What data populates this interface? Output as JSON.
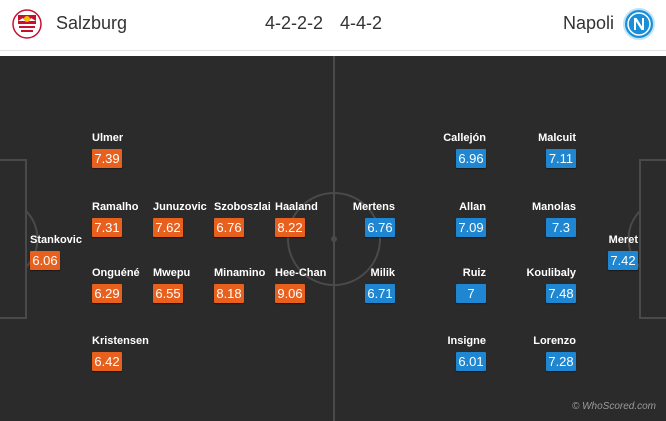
{
  "header": {
    "home_team": "Salzburg",
    "away_team": "Napoli",
    "home_formation": "4-2-2-2",
    "away_formation": "4-4-2"
  },
  "colors": {
    "home_rating": "#e8601e",
    "away_rating": "#1f86d1",
    "pitch": "#2b2b2b"
  },
  "home_players": [
    {
      "name": "Stankovic",
      "rating": "6.06"
    },
    {
      "name": "Ulmer",
      "rating": "7.39"
    },
    {
      "name": "Ramalho",
      "rating": "7.31"
    },
    {
      "name": "Onguéné",
      "rating": "6.29"
    },
    {
      "name": "Kristensen",
      "rating": "6.42"
    },
    {
      "name": "Junuzovic",
      "rating": "7.62"
    },
    {
      "name": "Mwepu",
      "rating": "6.55"
    },
    {
      "name": "Szoboszlai",
      "rating": "6.76"
    },
    {
      "name": "Minamino",
      "rating": "8.18"
    },
    {
      "name": "Haaland",
      "rating": "8.22"
    },
    {
      "name": "Hee-Chan",
      "rating": "9.06"
    }
  ],
  "away_players": [
    {
      "name": "Meret",
      "rating": "7.42"
    },
    {
      "name": "Malcuit",
      "rating": "7.11"
    },
    {
      "name": "Manolas",
      "rating": "7.3"
    },
    {
      "name": "Koulibaly",
      "rating": "7.48"
    },
    {
      "name": "Lorenzo",
      "rating": "7.28"
    },
    {
      "name": "Callejón",
      "rating": "6.96"
    },
    {
      "name": "Allan",
      "rating": "7.09"
    },
    {
      "name": "Ruiz",
      "rating": "7"
    },
    {
      "name": "Insigne",
      "rating": "6.01"
    },
    {
      "name": "Mertens",
      "rating": "6.76"
    },
    {
      "name": "Milik",
      "rating": "6.71"
    }
  ],
  "watermark": "© WhoScored.com"
}
